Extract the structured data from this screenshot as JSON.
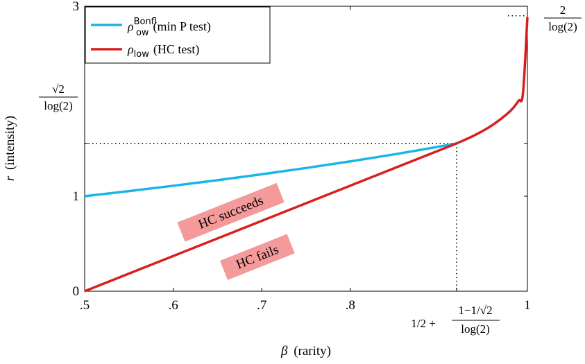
{
  "chart_data": {
    "type": "line",
    "xlabel_symbol": "β",
    "xlabel_text": "(rarity)",
    "ylabel_symbol": "r",
    "ylabel_text": "(intensity)",
    "xlim": [
      0.5,
      1.0
    ],
    "ylim": [
      0,
      3
    ],
    "x_ticks": [
      {
        "value": 0.5,
        "label": ".5"
      },
      {
        "value": 0.6,
        "label": ".6"
      },
      {
        "value": 0.7,
        "label": ".7"
      },
      {
        "value": 0.8,
        "label": ".8"
      },
      {
        "value": 1.0,
        "label": "1"
      }
    ],
    "y_ticks": [
      {
        "value": 0,
        "label": "0"
      },
      {
        "value": 1,
        "label": "1"
      },
      {
        "value": 3,
        "label": "3"
      }
    ],
    "legend_position": "top-left",
    "series": [
      {
        "name_main": "ρ",
        "name_sup": "Bonf",
        "name_sub": "low",
        "name_suffix": "(min P test)",
        "color": "#1bb4e8",
        "x": [
          0.5,
          0.55,
          0.6,
          0.65,
          0.7,
          0.75,
          0.8,
          0.85,
          0.9,
          0.9201
        ],
        "y": [
          1.0,
          1.054,
          1.11,
          1.169,
          1.231,
          1.297,
          1.367,
          1.441,
          1.522,
          1.556
        ]
      },
      {
        "name_main": "ρ",
        "name_sub": "low",
        "name_suffix": "(HC test)",
        "color": "#d91e1e",
        "x": [
          0.5,
          0.9201,
          0.94,
          0.96,
          0.98,
          0.99,
          0.995,
          1.0
        ],
        "y": [
          0.0,
          1.556,
          1.64,
          1.746,
          1.891,
          2.004,
          2.084,
          2.885
        ]
      }
    ],
    "annotations": {
      "left_tick_num": "√2",
      "left_tick_den": "log(2)",
      "right_top_num": "2",
      "right_top_den": "log(2)",
      "bottom_prefix": "1/2 +",
      "bottom_num": "1−1/√2",
      "bottom_den": "log(2)",
      "crossing_x": 0.9201,
      "crossing_y": 1.556,
      "max_y": 2.885
    },
    "regions": [
      {
        "label": "HC succeeds"
      },
      {
        "label": "HC fails"
      }
    ],
    "colors": {
      "region_box": "#f59a9a"
    }
  }
}
